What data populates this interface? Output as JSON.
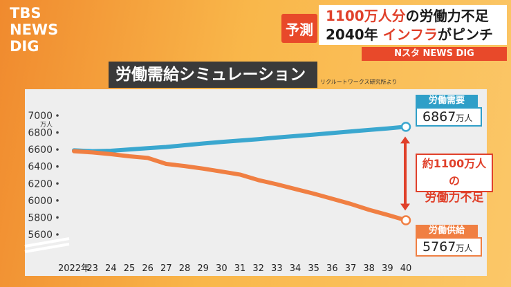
{
  "header": {
    "logo": [
      "TBS",
      "NEWS",
      "DIG"
    ],
    "tag": "予測",
    "line1_a": "1100万人分",
    "line1_b": "の労働力不足",
    "line2_a": "2040年 ",
    "line2_b": "インフラ",
    "line2_c": "がピンチ",
    "brand": "Nスタ NEWS DIG"
  },
  "panel": {
    "title": "労働需給シミュレーション",
    "source": "リクルートワークス研究所より"
  },
  "callouts": {
    "demand_label": "労働需要",
    "demand_value": "6867",
    "supply_label": "労働供給",
    "supply_value": "5767",
    "unit": "万人",
    "gap_line1": "約1100万人の",
    "gap_line2": "労働力不足"
  },
  "chart_data": {
    "type": "line",
    "y_unit": "万人",
    "ylim": [
      5500,
      7000
    ],
    "yticks": [
      5600,
      5800,
      6000,
      6200,
      6400,
      6600,
      6800,
      7000
    ],
    "x_tick_labels": [
      "2022年",
      "23",
      "24",
      "25",
      "26",
      "27",
      "28",
      "29",
      "30",
      "31",
      "32",
      "33",
      "34",
      "35",
      "36",
      "37",
      "38",
      "39",
      "40"
    ],
    "x": [
      2022,
      2023,
      2024,
      2025,
      2026,
      2027,
      2028,
      2029,
      2030,
      2031,
      2032,
      2033,
      2034,
      2035,
      2036,
      2037,
      2038,
      2039,
      2040
    ],
    "series": [
      {
        "name": "労働需要",
        "color": "#3aa7cf",
        "values": [
          6590,
          6580,
          6585,
          6600,
          6615,
          6630,
          6650,
          6670,
          6688,
          6705,
          6722,
          6740,
          6758,
          6775,
          6793,
          6812,
          6830,
          6848,
          6867
        ]
      },
      {
        "name": "労働供給",
        "color": "#f07f42",
        "values": [
          6580,
          6565,
          6545,
          6520,
          6500,
          6430,
          6405,
          6375,
          6340,
          6305,
          6240,
          6190,
          6135,
          6080,
          6020,
          5960,
          5890,
          5830,
          5767
        ]
      }
    ]
  }
}
